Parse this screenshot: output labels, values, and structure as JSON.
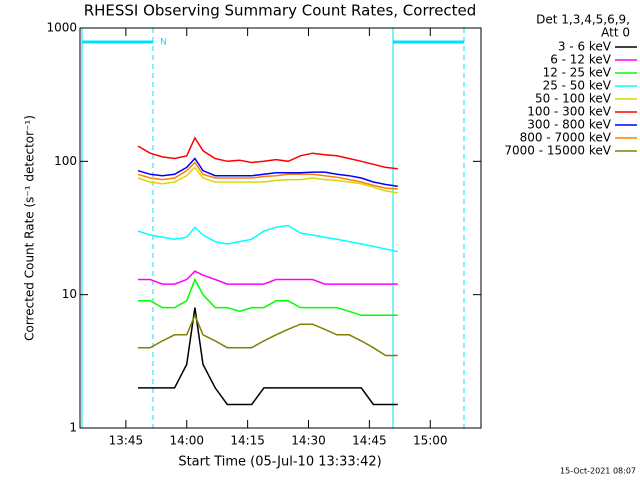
{
  "chart_data": {
    "type": "line",
    "title": "RHESSI Observing Summary Count Rates, Corrected",
    "x_label": "Start Time (05-Jul-10 13:33:42)",
    "y_label": "Corrected Count Rate (s⁻¹ detector⁻¹)",
    "legend_header": [
      "Det 1,3,4,5,6,9,",
      "Att 0"
    ],
    "annotation": "N",
    "footer": "15-Oct-2021 08:07",
    "log_y": true,
    "xlim": [
      "13:33:42",
      "15:12:30"
    ],
    "xticks": [
      "13:45",
      "14:00",
      "14:15",
      "14:30",
      "14:45",
      "15:00"
    ],
    "ylim": [
      1,
      1000
    ],
    "yticks": [
      1,
      10,
      100,
      1000
    ],
    "x": [
      "13:48",
      "13:51",
      "13:54",
      "13:57",
      "14:00",
      "14:02",
      "14:04",
      "14:07",
      "14:10",
      "14:13",
      "14:16",
      "14:19",
      "14:22",
      "14:25",
      "14:28",
      "14:31",
      "14:34",
      "14:37",
      "14:40",
      "14:43",
      "14:46",
      "14:49",
      "14:52"
    ],
    "series": [
      {
        "name": "3 - 6 keV",
        "color": "#000000",
        "values": [
          2,
          2,
          2,
          2,
          3,
          8,
          3,
          2,
          1.5,
          1.5,
          1.5,
          2,
          2,
          2,
          2,
          2,
          2,
          2,
          2,
          2,
          1.5,
          1.5,
          1.5
        ]
      },
      {
        "name": "6 - 12 keV",
        "color": "#ff00ff",
        "values": [
          13,
          13,
          12,
          12,
          13,
          15,
          14,
          13,
          12,
          12,
          12,
          12,
          13,
          13,
          13,
          13,
          12,
          12,
          12,
          12,
          12,
          12,
          12
        ]
      },
      {
        "name": "12 - 25 keV",
        "color": "#00ff00",
        "values": [
          9,
          9,
          8,
          8,
          9,
          13,
          10,
          8,
          8,
          7.5,
          8,
          8,
          9,
          9,
          8,
          8,
          8,
          8,
          7.5,
          7,
          7,
          7,
          7
        ]
      },
      {
        "name": "25 - 50 keV",
        "color": "#00ffff",
        "values": [
          30,
          28,
          27,
          26,
          27,
          32,
          28,
          25,
          24,
          25,
          26,
          30,
          32,
          33,
          29,
          28,
          27,
          26,
          25,
          24,
          23,
          22,
          21
        ]
      },
      {
        "name": "50 - 100 keV",
        "color": "#d8d800",
        "values": [
          75,
          70,
          68,
          70,
          78,
          90,
          75,
          70,
          70,
          70,
          70,
          70,
          72,
          73,
          73,
          75,
          73,
          72,
          70,
          68,
          64,
          60,
          58
        ]
      },
      {
        "name": "100 - 300 keV",
        "color": "#ff0000",
        "values": [
          130,
          115,
          108,
          105,
          110,
          150,
          120,
          105,
          100,
          102,
          98,
          100,
          103,
          100,
          110,
          115,
          112,
          110,
          105,
          100,
          95,
          90,
          88
        ]
      },
      {
        "name": "300 - 800 keV",
        "color": "#0000ff",
        "values": [
          85,
          80,
          78,
          80,
          90,
          105,
          85,
          78,
          78,
          78,
          78,
          80,
          82,
          82,
          82,
          83,
          83,
          80,
          78,
          75,
          70,
          67,
          65
        ]
      },
      {
        "name": "800 - 7000 keV",
        "color": "#ff8000",
        "values": [
          80,
          75,
          73,
          75,
          85,
          98,
          80,
          75,
          75,
          75,
          75,
          77,
          78,
          80,
          80,
          80,
          78,
          76,
          73,
          70,
          66,
          63,
          62
        ]
      },
      {
        "name": "7000 - 15000 keV",
        "color": "#808000",
        "values": [
          4,
          4,
          4.5,
          5,
          5,
          7,
          5,
          4.5,
          4,
          4,
          4,
          4.5,
          5,
          5.5,
          6,
          6,
          5.5,
          5,
          5,
          4.5,
          4,
          3.5,
          3.5
        ]
      }
    ]
  }
}
